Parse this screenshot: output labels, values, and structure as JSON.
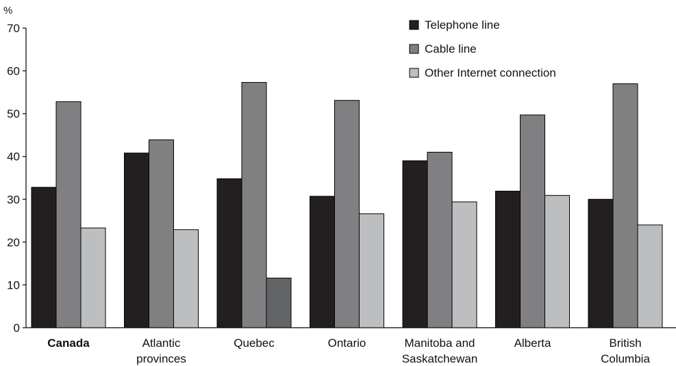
{
  "chart_data": {
    "type": "bar",
    "ylabel": "%",
    "ylim": [
      0,
      70
    ],
    "yticks": [
      0,
      10,
      20,
      30,
      40,
      50,
      60,
      70
    ],
    "grid": false,
    "legend_position": "top-right",
    "categories": [
      [
        "Canada"
      ],
      [
        "Atlantic",
        "provinces"
      ],
      [
        "Quebec"
      ],
      [
        "Ontario"
      ],
      [
        "Manitoba and",
        "Saskatchewan"
      ],
      [
        "Alberta"
      ],
      [
        "British",
        "Columbia"
      ]
    ],
    "bold_categories": [
      "Canada"
    ],
    "series": [
      {
        "name": "Telephone line",
        "color": "#231f20",
        "values": [
          32.8,
          40.8,
          34.8,
          30.7,
          39.0,
          31.9,
          30.0
        ]
      },
      {
        "name": "Cable line",
        "color": "#808083",
        "values": [
          52.8,
          43.9,
          57.3,
          53.1,
          41.0,
          49.7,
          57.0
        ]
      },
      {
        "name": "Other Internet connection",
        "color": "#bcbec0",
        "values": [
          23.3,
          22.9,
          11.6,
          26.6,
          29.4,
          30.9,
          24.0
        ]
      }
    ],
    "special_bar_colors": [
      {
        "series": 2,
        "category": 2,
        "color": "#636466"
      }
    ]
  }
}
